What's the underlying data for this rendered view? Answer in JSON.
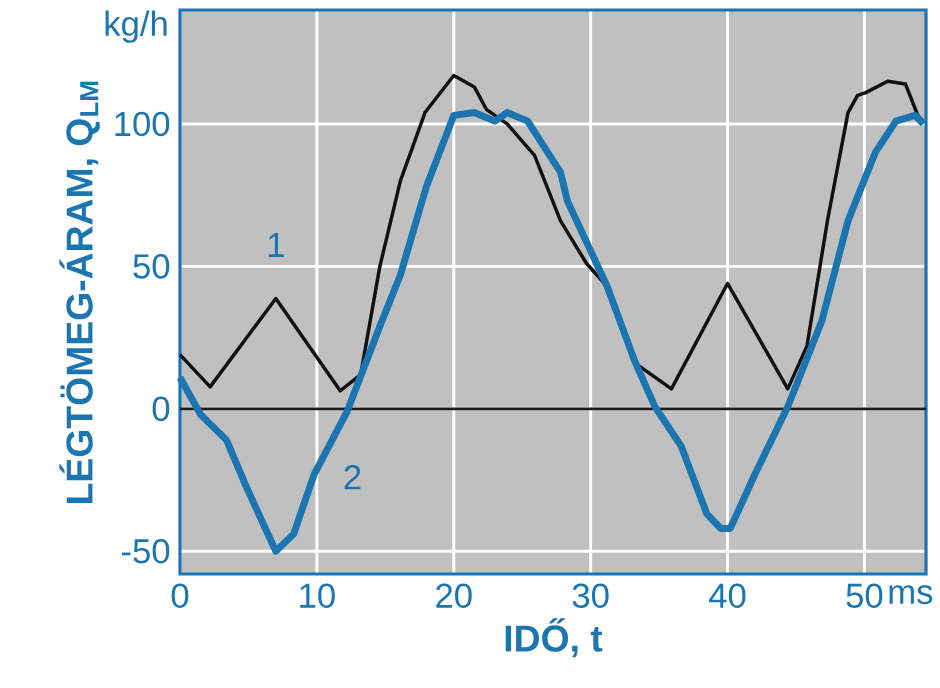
{
  "chart_data": {
    "type": "line",
    "xlabel": "IDŐ, t",
    "ylabel": "LÉGTÖMEG-ÁRAM, Q$_{LM}$",
    "xlim": [
      0,
      54.5
    ],
    "ylim": [
      -58,
      140
    ],
    "xticks": [
      0,
      10,
      20,
      30,
      40,
      50
    ],
    "yticks": [
      -50,
      0,
      50,
      100
    ],
    "grid": true,
    "legend": false,
    "marker": "none",
    "line_style": "solid",
    "annotations": [
      "kg/h",
      "ms"
    ],
    "ref_lines": [
      {
        "axis": "y",
        "value": 0,
        "color": "#1a1a1a"
      }
    ],
    "series": [
      {
        "name": "1",
        "color": "#111111",
        "x": [
          0,
          2.2,
          7.0,
          11.7,
          13.2,
          14.6,
          16.1,
          17.9,
          20,
          21.5,
          22.4,
          23.9,
          25.9,
          27.8,
          29.7,
          31,
          32.2,
          33.4,
          35.9,
          40,
          44.4,
          45.8,
          47.3,
          48.8,
          49.5,
          50.1,
          51.7,
          53,
          53.9,
          54.3
        ],
        "values": [
          19,
          7.7,
          38.7,
          6.3,
          12,
          50,
          80,
          104,
          117,
          113,
          105,
          100,
          89,
          66,
          51,
          44,
          null,
          15.5,
          7,
          44,
          7,
          22,
          66,
          104,
          110,
          111,
          115,
          114,
          103,
          101
        ]
      },
      {
        "name": "2",
        "color": "#1a75b0",
        "x": [
          0,
          1.5,
          3.4,
          4.9,
          7,
          8.3,
          9.8,
          12.2,
          14.6,
          16.1,
          18,
          20,
          21.5,
          23,
          23.9,
          25.4,
          27.8,
          28.3,
          31.2,
          33.2,
          34.7,
          36.6,
          38.5,
          39.5,
          40.2,
          42,
          44.4,
          46.9,
          48.8,
          50.8,
          52.3,
          53.7,
          54.3
        ],
        "values": [
          11,
          -2,
          -11,
          -28,
          -50,
          -44,
          -23,
          -1,
          29,
          47,
          78,
          103,
          104,
          101,
          104,
          101,
          83,
          73,
          43,
          17,
          0.7,
          -13,
          -37,
          -42,
          -42,
          -23,
          0.7,
          31,
          66,
          90,
          101,
          103,
          100
        ]
      }
    ]
  }
}
